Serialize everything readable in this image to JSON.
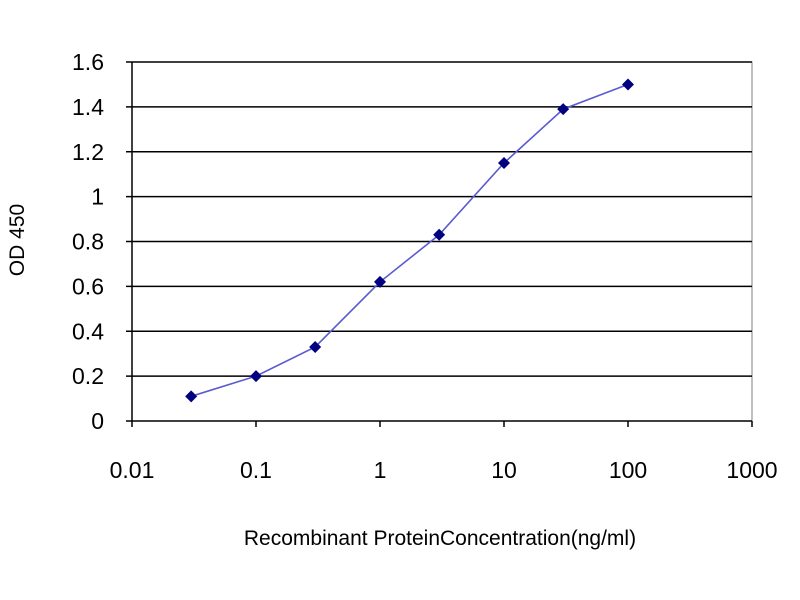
{
  "chart_data": {
    "type": "line",
    "title": "",
    "xlabel": "Recombinant ProteinConcentration(ng/ml)",
    "ylabel": "OD 450",
    "x_scale": "log",
    "xlim": [
      0.01,
      1000
    ],
    "ylim": [
      0,
      1.6
    ],
    "x_ticks": [
      "0.01",
      "0.1",
      "1",
      "10",
      "100",
      "1000"
    ],
    "y_ticks": [
      "0",
      "0.2",
      "0.4",
      "0.6",
      "0.8",
      "1",
      "1.2",
      "1.4",
      "1.6"
    ],
    "grid": "horizontal",
    "legend": "none",
    "series": [
      {
        "x": [
          0.03,
          0.1,
          0.3,
          1,
          3,
          10,
          30,
          100
        ],
        "y": [
          0.11,
          0.2,
          0.33,
          0.62,
          0.83,
          1.15,
          1.39,
          1.5
        ]
      }
    ],
    "colors": {
      "line": "#5b5bd0",
      "marker": "#000080",
      "plot_background": "#ffffff",
      "gridline": "#000000"
    }
  }
}
